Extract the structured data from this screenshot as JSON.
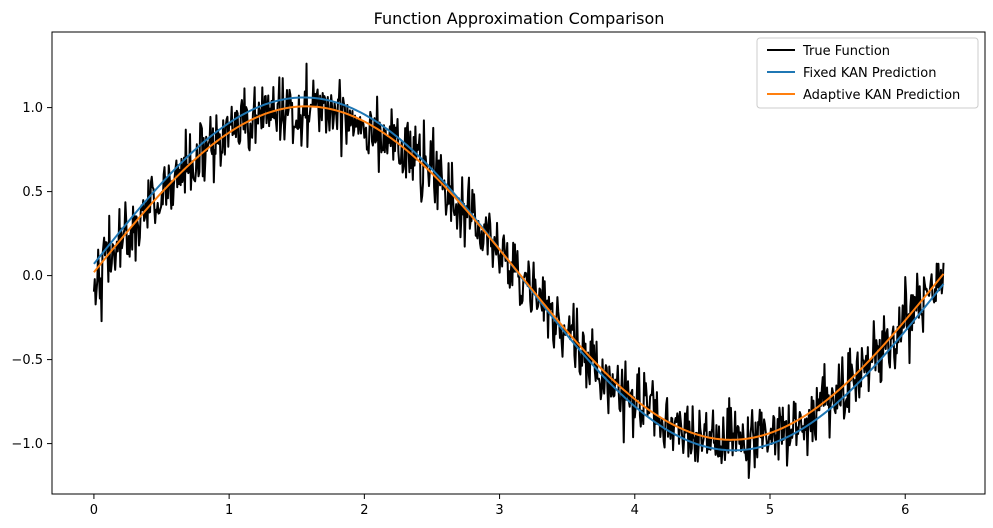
{
  "chart_data": {
    "type": "line",
    "title": "Function Approximation Comparison",
    "xlabel": "",
    "ylabel": "",
    "xlim": [
      -0.31,
      6.59
    ],
    "ylim": [
      -1.3,
      1.45
    ],
    "x_ticks": [
      0,
      1,
      2,
      3,
      4,
      5,
      6
    ],
    "y_ticks": [
      -1.0,
      -0.5,
      0.0,
      0.5,
      1.0
    ],
    "x_tick_labels": [
      "0",
      "1",
      "2",
      "3",
      "4",
      "5",
      "6"
    ],
    "y_tick_labels": [
      "−1.0",
      "−0.5",
      "0.0",
      "0.5",
      "1.0"
    ],
    "grid": false,
    "legend_position": "top-right",
    "x_range": [
      0,
      6.2832
    ],
    "series": [
      {
        "name": "True Function",
        "color": "#000000",
        "description_of_shape": "sin(x) with additive noise (std approx 0.1)",
        "noise_std": 0.1,
        "points": 1000,
        "seed": 42
      },
      {
        "name": "Fixed KAN Prediction",
        "color": "#1f77b4",
        "amplitude": 1.02,
        "offset": 0.0,
        "start_value": 0.07,
        "end_value": -0.05
      },
      {
        "name": "Adaptive KAN Prediction",
        "color": "#ff7f0e",
        "amplitude": 0.99,
        "offset": 0.0,
        "start_value": 0.02,
        "end_value": 0.01
      }
    ]
  }
}
